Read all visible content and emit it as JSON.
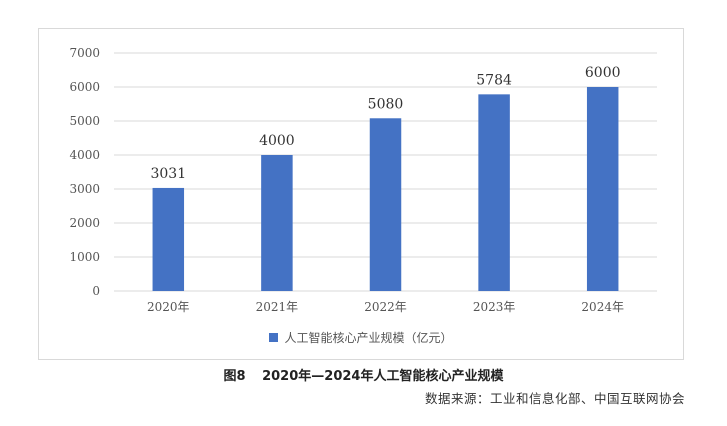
{
  "figure": {
    "label": "图8",
    "title": "2020年—2024年人工智能核心产业规模",
    "source": "数据来源：工业和信息化部、中国互联网协会"
  },
  "chart_data": {
    "type": "bar",
    "categories": [
      "2020年",
      "2021年",
      "2022年",
      "2023年",
      "2024年"
    ],
    "series": [
      {
        "name": "人工智能核心产业规模（亿元）",
        "values": [
          3031,
          4000,
          5080,
          5784,
          6000
        ],
        "color": "#4472c4"
      }
    ],
    "data_labels": [
      "3031",
      "4000",
      "5080",
      "5784",
      "6000"
    ],
    "ylim": [
      0,
      7000
    ],
    "yticks": [
      0,
      1000,
      2000,
      3000,
      4000,
      5000,
      6000,
      7000
    ],
    "grid": true,
    "gridColor": "#d9d9d9",
    "legend_position": "bottom"
  }
}
